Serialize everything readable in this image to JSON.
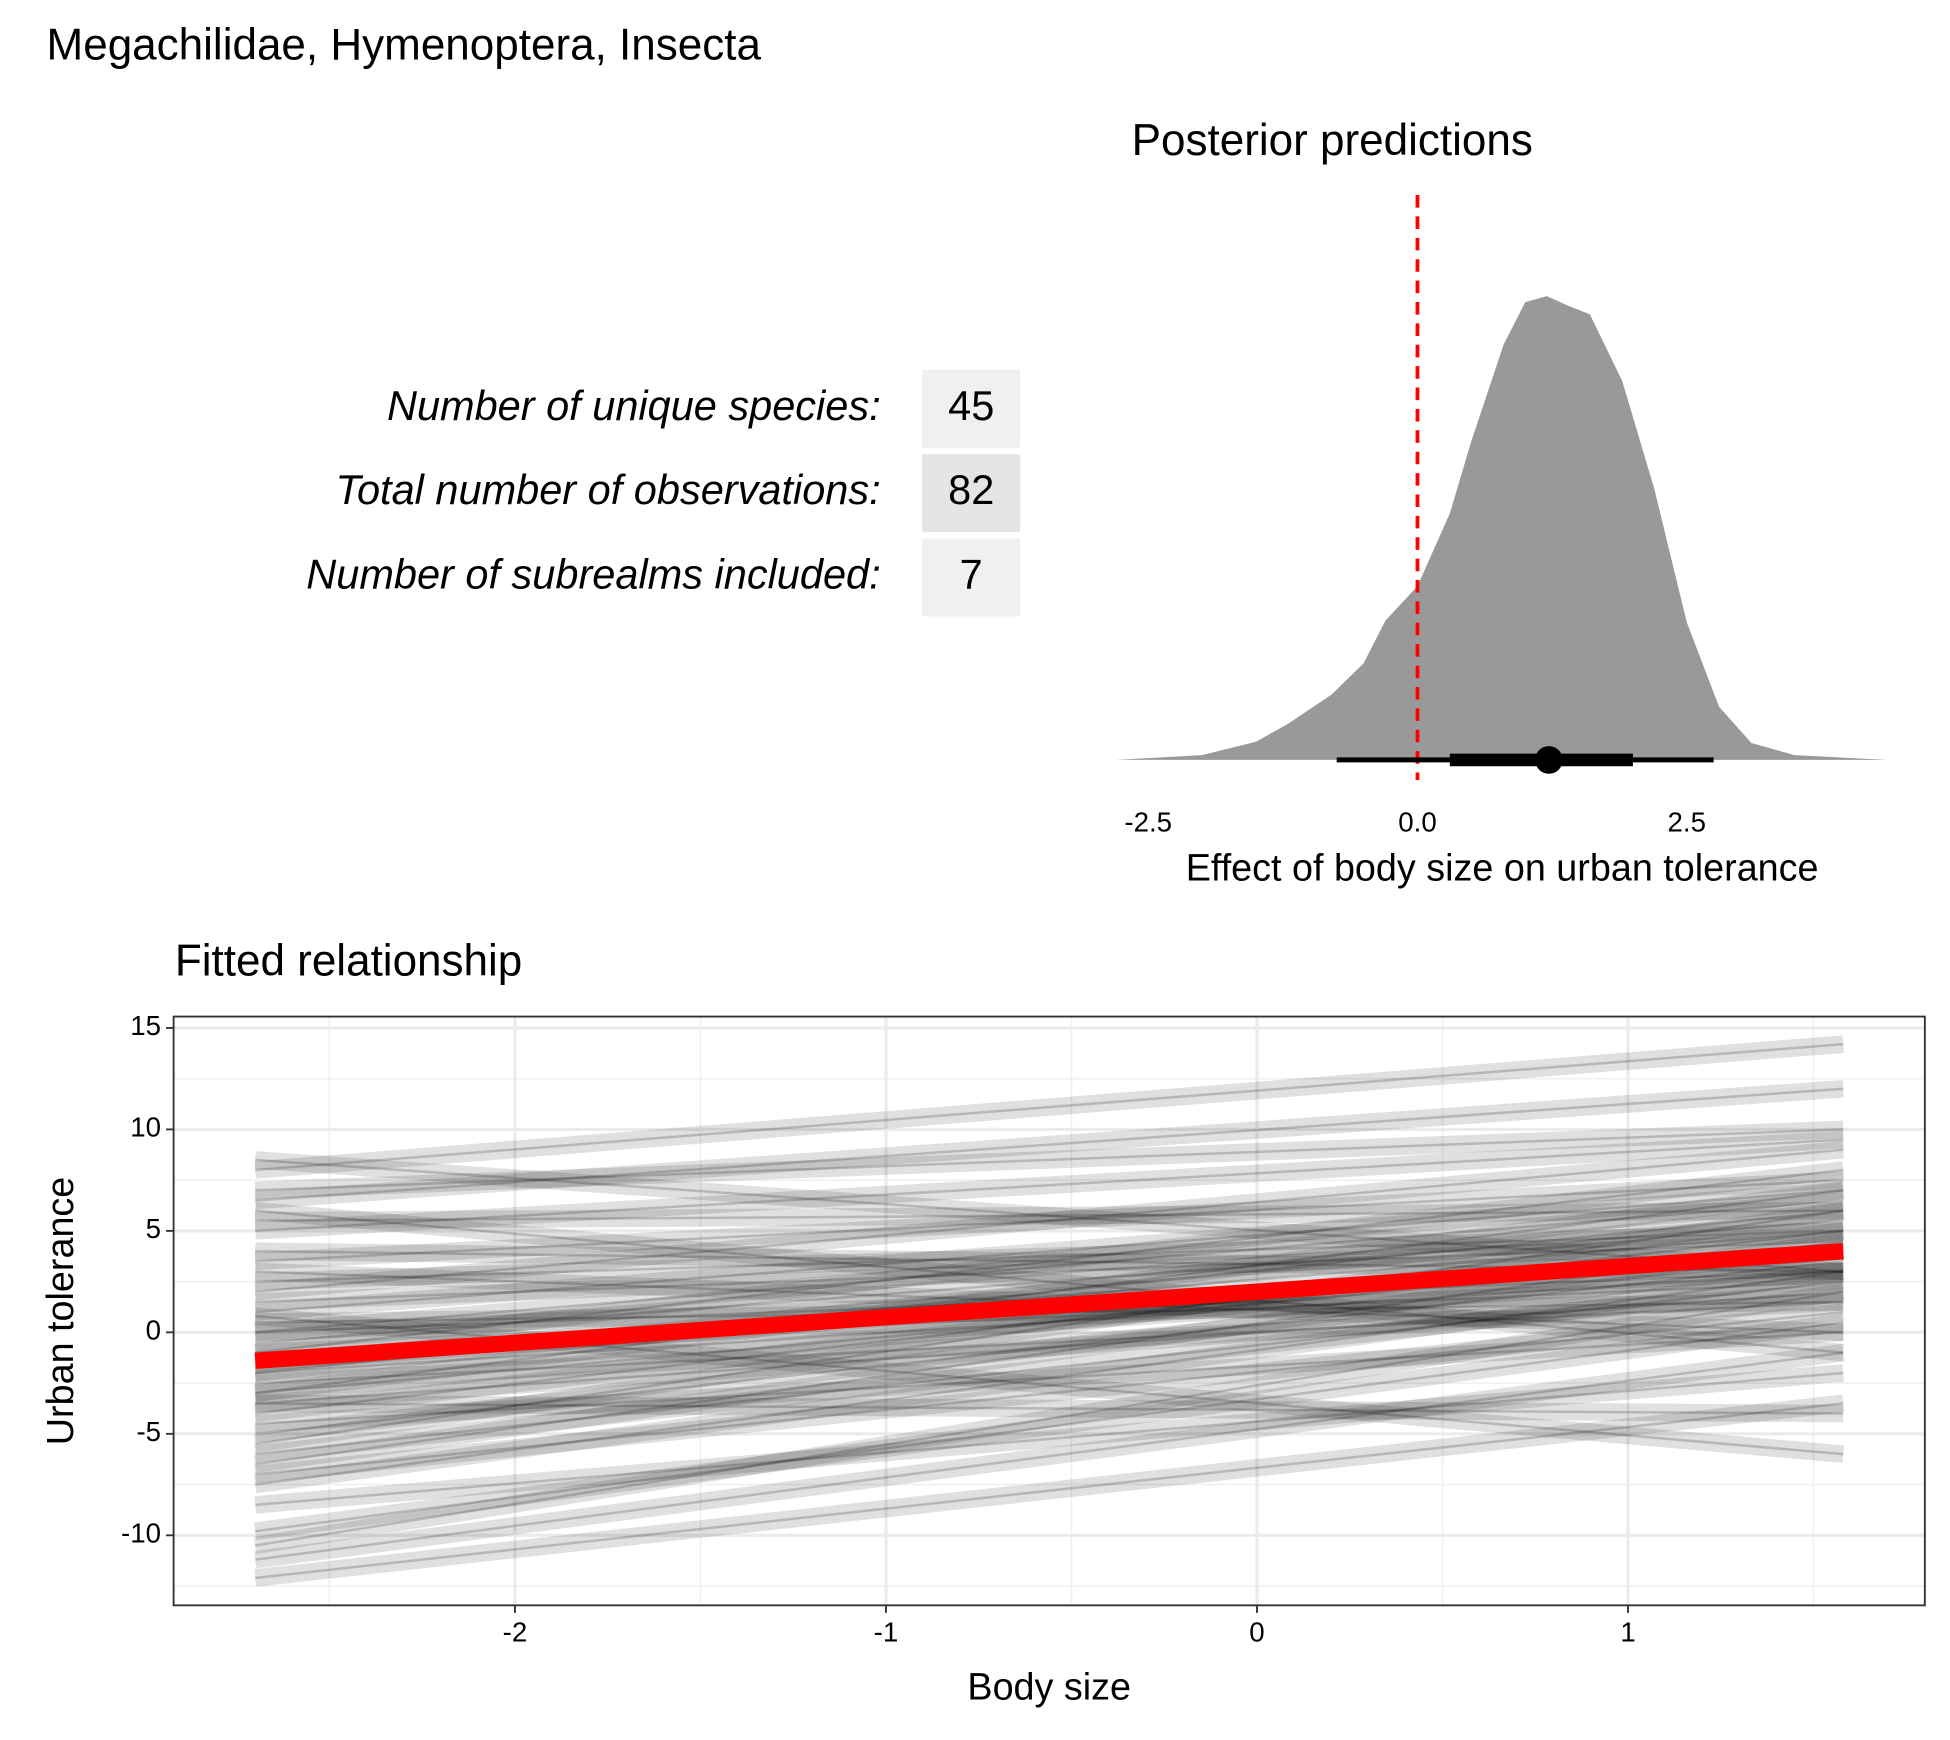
{
  "title": "Megachilidae, Hymenoptera, Insecta",
  "stats": {
    "rows": [
      {
        "label": "Number of unique species:",
        "value": 45
      },
      {
        "label": "Total number of observations:",
        "value": 82
      },
      {
        "label": "Number of subrealms included:",
        "value": 7
      }
    ]
  },
  "chart_data": [
    {
      "type": "density",
      "title": "Posterior predictions",
      "x_label": "Effect of body size on urban tolerance",
      "x": [
        -2.8,
        -2.0,
        -1.5,
        -1.2,
        -0.8,
        -0.5,
        -0.3,
        0,
        0.3,
        0.5,
        0.8,
        1.0,
        1.2,
        1.4,
        1.6,
        1.9,
        2.2,
        2.5,
        2.8,
        3.1,
        3.5,
        4.36
      ],
      "values": [
        0,
        0.004,
        0.015,
        0.03,
        0.054,
        0.08,
        0.115,
        0.144,
        0.204,
        0.264,
        0.344,
        0.379,
        0.384,
        0.376,
        0.369,
        0.314,
        0.224,
        0.114,
        0.044,
        0.014,
        0.004,
        0
      ],
      "color": "#999999",
      "ylim": [
        0,
        0.4
      ],
      "point": 1.22,
      "interval_66": [
        0.3,
        2.0
      ],
      "interval_95": [
        -0.75,
        2.75
      ],
      "ref_line": 0,
      "ref_color": "#ff0000",
      "xlim": [
        -2.8,
        4.36
      ],
      "xticks": [
        {
          "value": -2.5,
          "label": "-2.5"
        },
        {
          "value": 0,
          "label": "0.0"
        },
        {
          "value": 2.5,
          "label": "2.5"
        }
      ]
    },
    {
      "type": "line",
      "title": "Fitted relationship",
      "x_label": "Body size",
      "y_label": "Urban tolerance",
      "x": [
        -2.7,
        1.58
      ],
      "color": "#000000",
      "series": [
        {
          "values": [
            -12.1,
            -3.5
          ]
        },
        {
          "values": [
            -11.2,
            -1
          ]
        },
        {
          "values": [
            -10.5,
            2
          ]
        },
        {
          "values": [
            -9.8,
            0.5
          ]
        },
        {
          "values": [
            -8.5,
            -2
          ]
        },
        {
          "values": [
            -7.5,
            3
          ]
        },
        {
          "values": [
            -7,
            1
          ]
        },
        {
          "values": [
            -6.5,
            4.5
          ]
        },
        {
          "values": [
            -6,
            2.5
          ]
        },
        {
          "values": [
            -5.5,
            6
          ]
        },
        {
          "values": [
            -5,
            3.5
          ]
        },
        {
          "values": [
            -4.5,
            0
          ]
        },
        {
          "values": [
            -4,
            5
          ]
        },
        {
          "values": [
            -3.5,
            2
          ]
        },
        {
          "values": [
            -3,
            7
          ]
        },
        {
          "values": [
            -3,
            4
          ]
        },
        {
          "values": [
            -2.5,
            1.5
          ]
        },
        {
          "values": [
            -2,
            6
          ]
        },
        {
          "values": [
            -2,
            3
          ]
        },
        {
          "values": [
            -1.5,
            5
          ]
        },
        {
          "values": [
            -1.5,
            4
          ]
        },
        {
          "values": [
            -1,
            2.5
          ]
        },
        {
          "values": [
            -1,
            8
          ]
        },
        {
          "values": [
            -0.5,
            5.5
          ]
        },
        {
          "values": [
            0,
            3
          ]
        },
        {
          "values": [
            0,
            6.5
          ]
        },
        {
          "values": [
            0.5,
            1.5
          ]
        },
        {
          "values": [
            1,
            7
          ]
        },
        {
          "values": [
            1.5,
            4.5
          ]
        },
        {
          "values": [
            2,
            9
          ]
        },
        {
          "values": [
            2.5,
            5
          ]
        },
        {
          "values": [
            3,
            0
          ]
        },
        {
          "values": [
            3.5,
            7.5
          ]
        },
        {
          "values": [
            4,
            3
          ]
        },
        {
          "values": [
            5,
            9.5
          ]
        },
        {
          "values": [
            5.5,
            6
          ]
        },
        {
          "values": [
            6,
            -1
          ]
        },
        {
          "values": [
            6.5,
            12
          ]
        },
        {
          "values": [
            7,
            10
          ]
        },
        {
          "values": [
            8,
            14.2
          ]
        },
        {
          "values": [
            8.5,
            3
          ]
        },
        {
          "values": [
            0.8,
            -6
          ]
        },
        {
          "values": [
            -3.5,
            -4
          ]
        }
      ],
      "fit": {
        "values": [
          -1.4,
          4.0
        ],
        "color": "#ff0000"
      },
      "xlim": [
        -2.92,
        1.8
      ],
      "ylim": [
        -13.45,
        15.56
      ],
      "xticks": [
        -2,
        -1,
        0,
        1
      ],
      "yticks": [
        -10,
        -5,
        0,
        5,
        10,
        15
      ],
      "xminor": [
        -2.5,
        -1.5,
        -0.5,
        0.5,
        1.5
      ],
      "yminor": [
        -12.5,
        -7.5,
        -2.5,
        2.5,
        7.5,
        12.5
      ],
      "grid": true
    }
  ]
}
